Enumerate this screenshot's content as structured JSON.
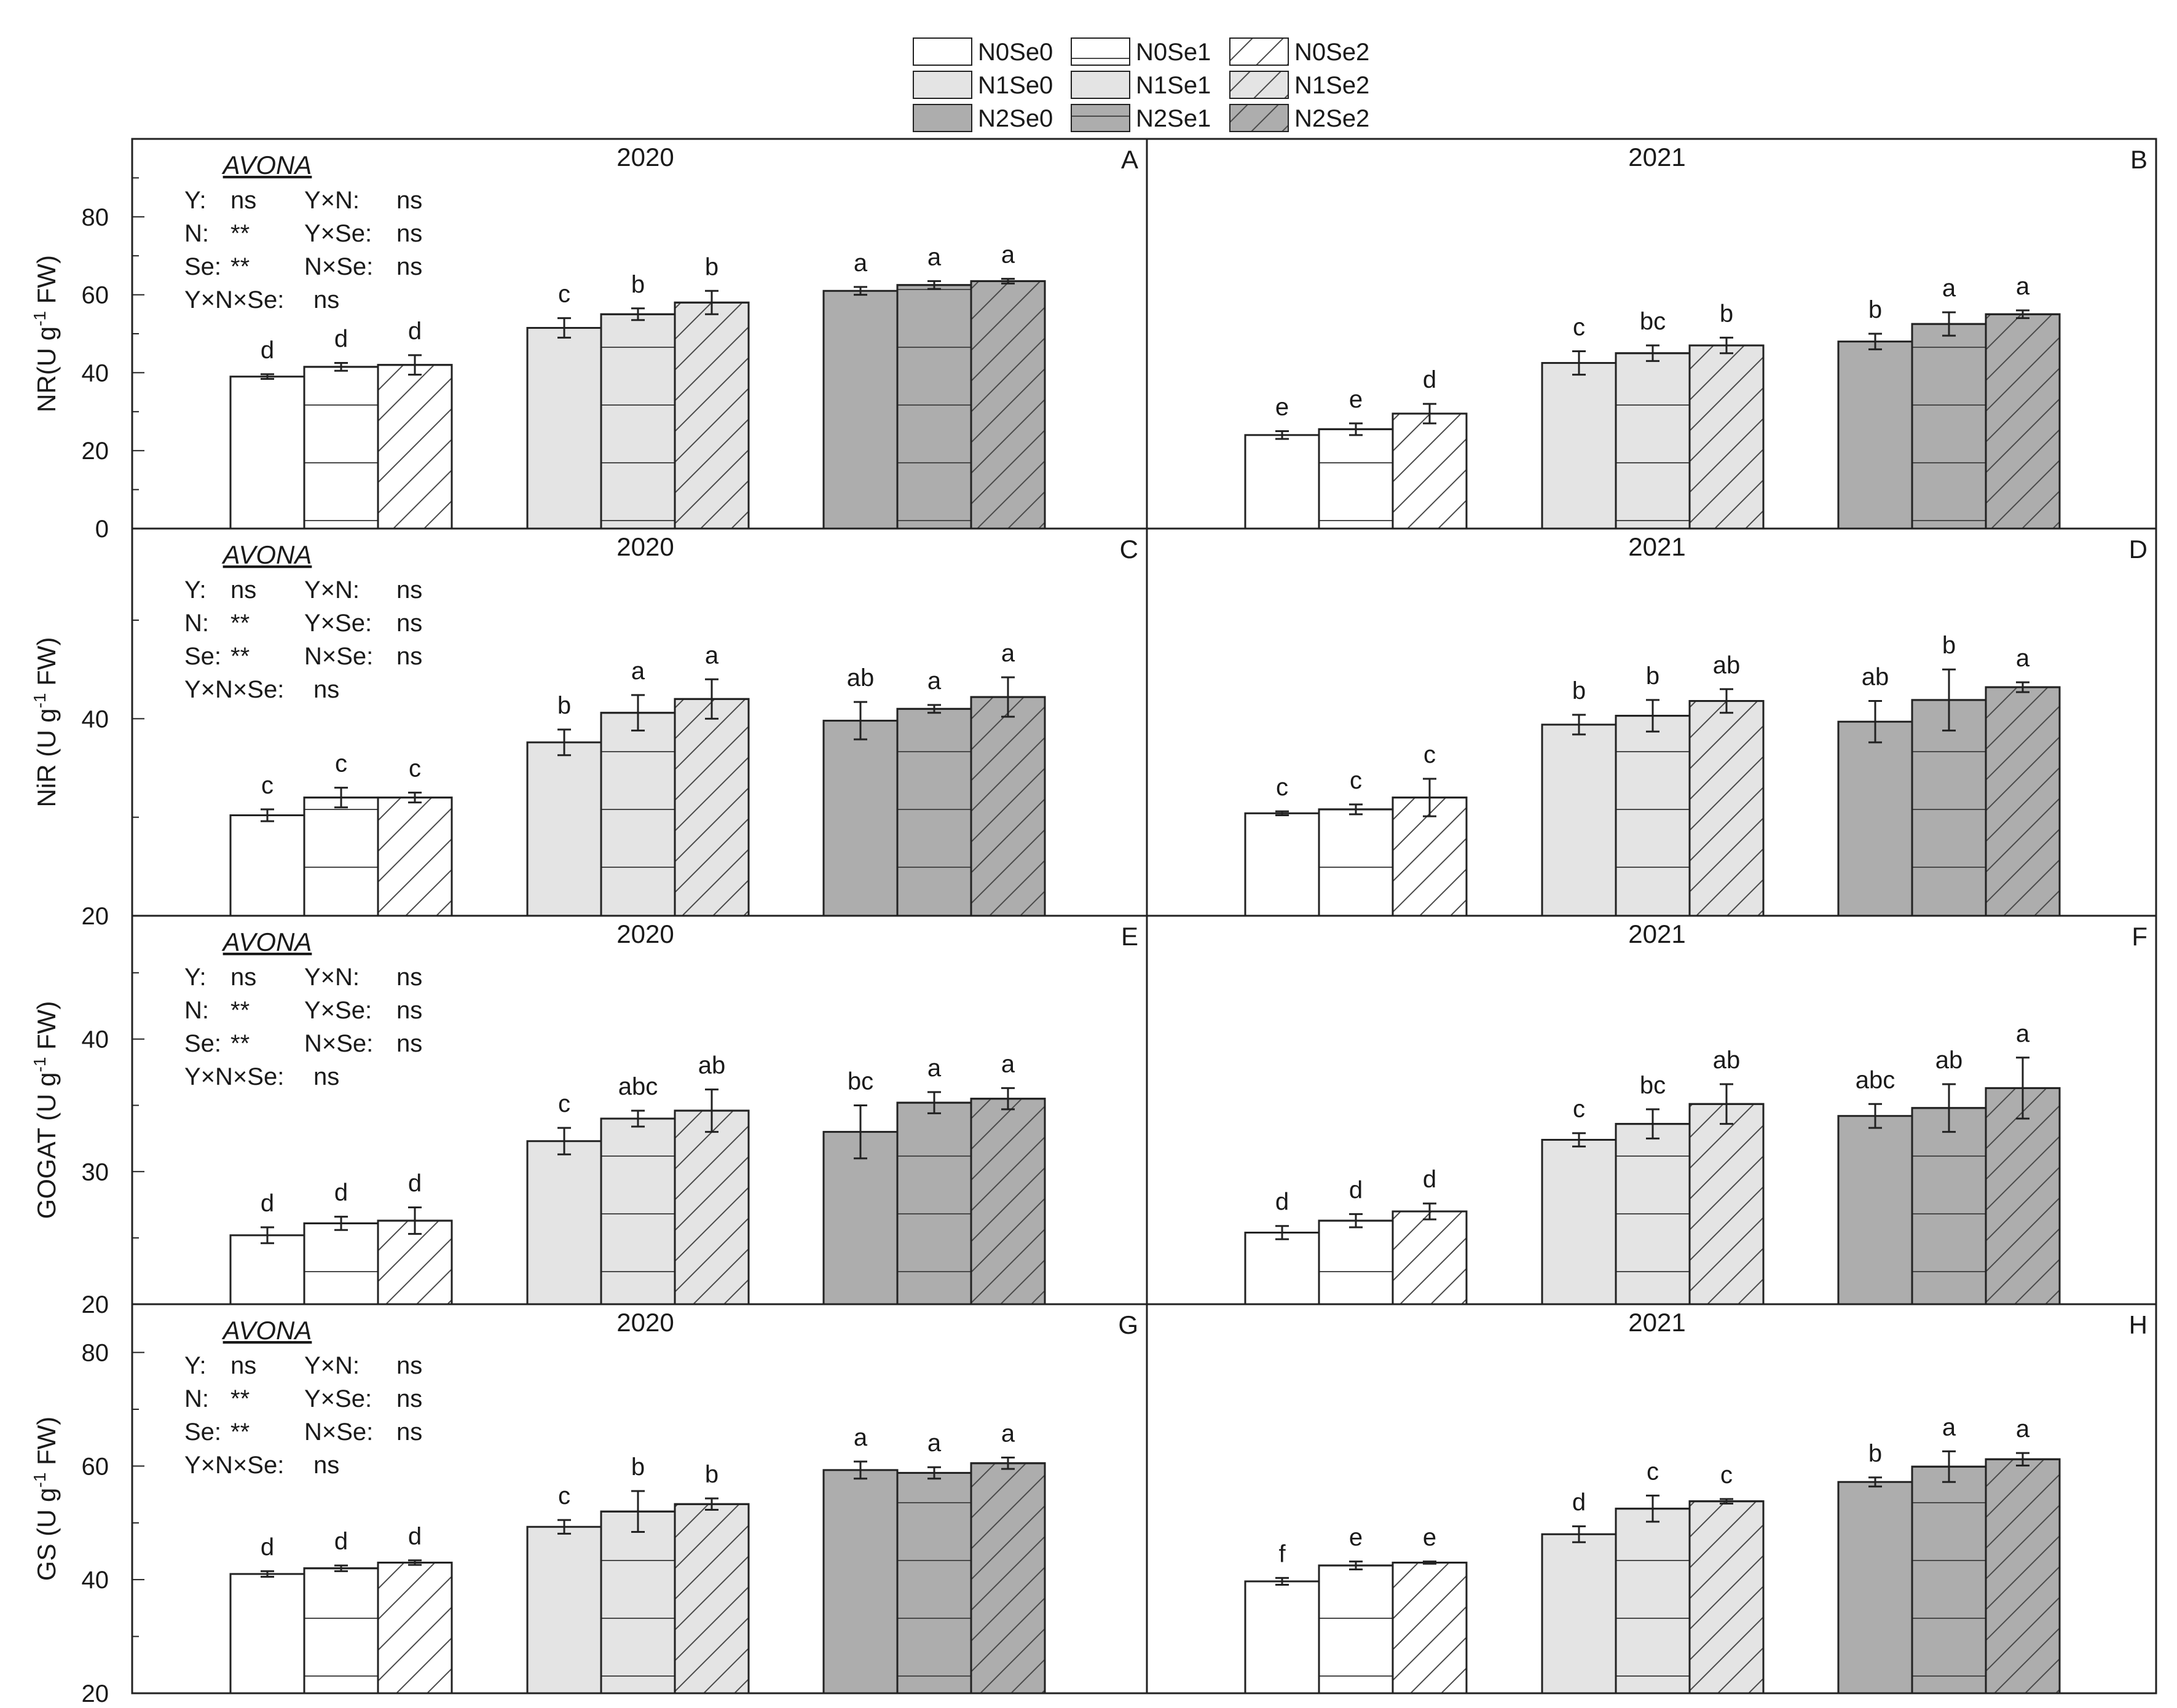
{
  "legend": [
    {
      "key": "N0Se0",
      "label": "N0Se0",
      "fill": "n0",
      "pattern": "none"
    },
    {
      "key": "N0Se1",
      "label": "N0Se1",
      "fill": "n0",
      "pattern": "hstripe"
    },
    {
      "key": "N0Se2",
      "label": "N0Se2",
      "fill": "n0",
      "pattern": "diag"
    },
    {
      "key": "N1Se0",
      "label": "N1Se0",
      "fill": "n1",
      "pattern": "none"
    },
    {
      "key": "N1Se1",
      "label": "N1Se1",
      "fill": "n1",
      "pattern": "hstripe"
    },
    {
      "key": "N1Se2",
      "label": "N1Se2",
      "fill": "n1",
      "pattern": "diag"
    },
    {
      "key": "N2Se0",
      "label": "N2Se0",
      "fill": "n2",
      "pattern": "none"
    },
    {
      "key": "N2Se1",
      "label": "N2Se1",
      "fill": "n2",
      "pattern": "hstripe"
    },
    {
      "key": "N2Se2",
      "label": "N2Se2",
      "fill": "n2",
      "pattern": "diag"
    }
  ],
  "colors": {
    "n0": "#ffffff",
    "n1": "#e4e4e4",
    "n2": "#adadad",
    "stroke": "#222222",
    "pattern": "#4a4a4a"
  },
  "stats_title": "AVONA",
  "chart_data": [
    {
      "type": "bar",
      "panel": "A",
      "year": "2020",
      "ylabel": "NR(U g-1 FW)",
      "ylim": [
        0,
        100
      ],
      "yticks": [
        0,
        20,
        40,
        60,
        80
      ],
      "categories": [
        "N0Se0",
        "N0Se1",
        "N0Se2",
        "N1Se0",
        "N1Se1",
        "N1Se2",
        "N2Se0",
        "N2Se1",
        "N2Se2"
      ],
      "values": [
        39,
        41.5,
        42,
        51.5,
        55,
        58,
        61,
        62.5,
        63.5
      ],
      "errors": [
        0.6,
        1,
        2.5,
        2.5,
        1.5,
        3,
        1,
        1,
        0.6
      ],
      "letters": [
        "d",
        "d",
        "d",
        "c",
        "b",
        "b",
        "a",
        "a",
        "a"
      ],
      "stats": [
        [
          "Y:",
          "ns",
          "Y×N:",
          "ns"
        ],
        [
          "N:",
          "**",
          "Y×Se:",
          "ns"
        ],
        [
          "Se:",
          "**",
          "N×Se:",
          "ns"
        ],
        [
          "Y×N×Se:",
          "ns",
          "",
          ""
        ]
      ]
    },
    {
      "type": "bar",
      "panel": "B",
      "year": "2021",
      "ylim": [
        0,
        100
      ],
      "categories": [
        "N0Se0",
        "N0Se1",
        "N0Se2",
        "N1Se0",
        "N1Se1",
        "N1Se2",
        "N2Se0",
        "N2Se1",
        "N2Se2"
      ],
      "values": [
        24,
        25.5,
        29.5,
        42.5,
        45,
        47,
        48,
        52.5,
        55
      ],
      "errors": [
        1,
        1.5,
        2.5,
        3,
        2,
        2,
        2,
        3,
        1
      ],
      "letters": [
        "e",
        "e",
        "d",
        "c",
        "bc",
        "b",
        "b",
        "a",
        "a"
      ]
    },
    {
      "type": "bar",
      "panel": "C",
      "year": "2020",
      "ylabel": "NiR (U g-1 FW)",
      "ylim": [
        20,
        59.3
      ],
      "yticks": [
        20,
        40
      ],
      "categories": [
        "N0Se0",
        "N0Se1",
        "N0Se2",
        "N1Se0",
        "N1Se1",
        "N1Se2",
        "N2Se0",
        "N2Se1",
        "N2Se2"
      ],
      "values": [
        30.2,
        32,
        32,
        37.6,
        40.6,
        42,
        39.8,
        41,
        42.2
      ],
      "errors": [
        0.6,
        1,
        0.5,
        1.3,
        1.8,
        2,
        1.9,
        0.4,
        2
      ],
      "letters": [
        "c",
        "c",
        "c",
        "b",
        "a",
        "a",
        "ab",
        "a",
        "a"
      ],
      "stats": [
        [
          "Y:",
          "ns",
          "Y×N:",
          "ns"
        ],
        [
          "N:",
          "**",
          "Y×Se:",
          "ns"
        ],
        [
          "Se:",
          "**",
          "N×Se:",
          "ns"
        ],
        [
          "Y×N×Se:",
          "ns",
          "",
          ""
        ]
      ]
    },
    {
      "type": "bar",
      "panel": "D",
      "year": "2021",
      "ylim": [
        20,
        59.3
      ],
      "categories": [
        "N0Se0",
        "N0Se1",
        "N0Se2",
        "N1Se0",
        "N1Se1",
        "N1Se2",
        "N2Se0",
        "N2Se1",
        "N2Se2"
      ],
      "values": [
        30.4,
        30.8,
        32,
        39.4,
        40.3,
        41.8,
        39.7,
        41.9,
        43.2
      ],
      "errors": [
        0.2,
        0.5,
        1.9,
        1,
        1.6,
        1.2,
        2.1,
        3.1,
        0.5
      ],
      "letters": [
        "c",
        "c",
        "c",
        "b",
        "b",
        "ab",
        "ab",
        "b",
        "a"
      ]
    },
    {
      "type": "bar",
      "panel": "E",
      "year": "2020",
      "ylabel": "GOGAT (U g-1 FW)",
      "ylim": [
        20,
        49.3
      ],
      "yticks": [
        20,
        30,
        40
      ],
      "categories": [
        "N0Se0",
        "N0Se1",
        "N0Se2",
        "N1Se0",
        "N1Se1",
        "N1Se2",
        "N2Se0",
        "N2Se1",
        "N2Se2"
      ],
      "values": [
        25.2,
        26.1,
        26.3,
        32.3,
        34,
        34.6,
        33,
        35.2,
        35.5
      ],
      "errors": [
        0.6,
        0.5,
        1,
        1,
        0.6,
        1.6,
        2,
        0.8,
        0.8
      ],
      "letters": [
        "d",
        "d",
        "d",
        "c",
        "abc",
        "ab",
        "bc",
        "a",
        "a"
      ],
      "stats": [
        [
          "Y:",
          "ns",
          "Y×N:",
          "ns"
        ],
        [
          "N:",
          "**",
          "Y×Se:",
          "ns"
        ],
        [
          "Se:",
          "**",
          "N×Se:",
          "ns"
        ],
        [
          "Y×N×Se:",
          "ns",
          "",
          ""
        ]
      ]
    },
    {
      "type": "bar",
      "panel": "F",
      "year": "2021",
      "ylim": [
        20,
        49.3
      ],
      "categories": [
        "N0Se0",
        "N0Se1",
        "N0Se2",
        "N1Se0",
        "N1Se1",
        "N1Se2",
        "N2Se0",
        "N2Se1",
        "N2Se2"
      ],
      "values": [
        25.4,
        26.3,
        27,
        32.4,
        33.6,
        35.1,
        34.2,
        34.8,
        36.3
      ],
      "errors": [
        0.5,
        0.5,
        0.6,
        0.5,
        1.1,
        1.5,
        0.9,
        1.8,
        2.3
      ],
      "letters": [
        "d",
        "d",
        "d",
        "c",
        "bc",
        "ab",
        "abc",
        "ab",
        "a"
      ]
    },
    {
      "type": "bar",
      "panel": "G",
      "year": "2020",
      "ylabel": "GS (U g-1 FW)",
      "ylim": [
        20,
        88.5
      ],
      "yticks": [
        20,
        40,
        60,
        80
      ],
      "categories": [
        "N0Se0",
        "N0Se1",
        "N0Se2",
        "N1Se0",
        "N1Se1",
        "N1Se2",
        "N2Se0",
        "N2Se1",
        "N2Se2"
      ],
      "values": [
        41,
        42,
        43,
        49.3,
        52,
        53.3,
        59.3,
        58.8,
        60.5
      ],
      "errors": [
        0.5,
        0.5,
        0.4,
        1.2,
        3.6,
        1,
        1.5,
        1,
        1
      ],
      "letters": [
        "d",
        "d",
        "d",
        "c",
        "b",
        "b",
        "a",
        "a",
        "a"
      ],
      "stats": [
        [
          "Y:",
          "ns",
          "Y×N:",
          "ns"
        ],
        [
          "N:",
          "**",
          "Y×Se:",
          "ns"
        ],
        [
          "Se:",
          "**",
          "N×Se:",
          "ns"
        ],
        [
          "Y×N×Se:",
          "ns",
          "",
          ""
        ]
      ]
    },
    {
      "type": "bar",
      "panel": "H",
      "year": "2021",
      "ylim": [
        20,
        88.5
      ],
      "categories": [
        "N0Se0",
        "N0Se1",
        "N0Se2",
        "N1Se0",
        "N1Se1",
        "N1Se2",
        "N2Se0",
        "N2Se1",
        "N2Se2"
      ],
      "values": [
        39.7,
        42.5,
        43,
        48,
        52.5,
        53.8,
        57.2,
        59.9,
        61.2
      ],
      "errors": [
        0.6,
        0.7,
        0.2,
        1.4,
        2.3,
        0.4,
        0.8,
        2.7,
        1.1
      ],
      "letters": [
        "f",
        "e",
        "e",
        "d",
        "c",
        "c",
        "b",
        "a",
        "a"
      ]
    }
  ]
}
